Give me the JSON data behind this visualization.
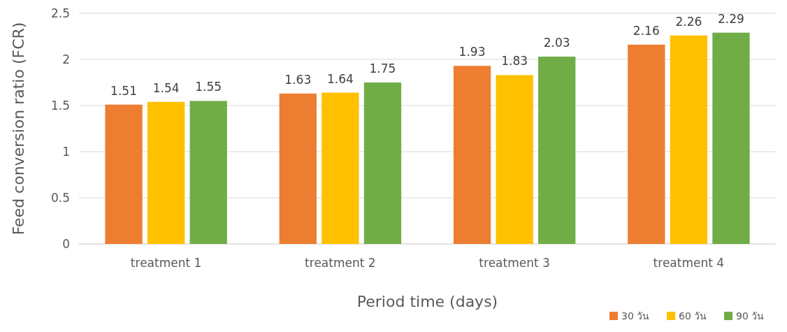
{
  "chart_data": {
    "type": "bar",
    "xlabel": "Period time (days)",
    "ylabel": "Feed conversion ratio (FCR)",
    "categories": [
      "treatment 1",
      "treatment 2",
      "treatment 3",
      "treatment 4"
    ],
    "series": [
      {
        "name": "30 วัน",
        "color": "#ed7d31",
        "values": [
          1.51,
          1.63,
          1.93,
          2.16
        ]
      },
      {
        "name": "60 วัน",
        "color": "#ffc000",
        "values": [
          1.54,
          1.64,
          1.83,
          2.26
        ]
      },
      {
        "name": "90 วัน",
        "color": "#70ad47",
        "values": [
          1.55,
          1.75,
          2.03,
          2.29
        ]
      }
    ],
    "ylim": [
      0,
      2.5
    ],
    "yticks": [
      0,
      0.5,
      1,
      1.5,
      2,
      2.5
    ],
    "grid": "y",
    "legend": "bottom right",
    "data_labels": true
  }
}
